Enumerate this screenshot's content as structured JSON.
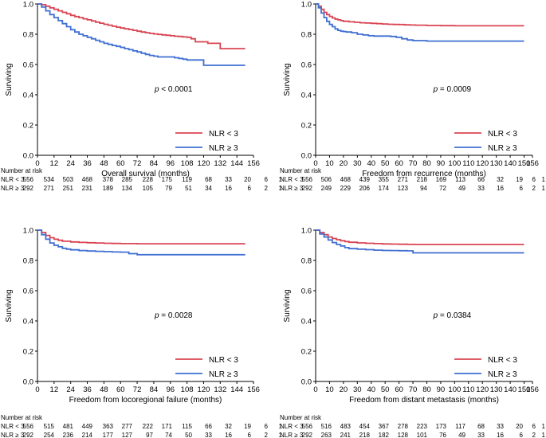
{
  "chart_data": [
    {
      "type": "line",
      "title": "",
      "xlabel": "Overall survival (months)",
      "ylabel": "Surviving",
      "xlim": [
        0,
        156
      ],
      "ylim": [
        0,
        1.0
      ],
      "xticks": [
        0,
        12,
        24,
        36,
        48,
        60,
        72,
        84,
        96,
        108,
        120,
        132,
        144,
        156
      ],
      "yticks": [
        "0.0",
        "0.2",
        "0.4",
        "0.6",
        "0.8",
        "1.0"
      ],
      "pvalue": {
        "label": "p",
        "text": "< 0.0001"
      },
      "legend_position": "bottom-right",
      "series": [
        {
          "name": "NLR < 3",
          "color": "#d94452",
          "x": [
            0,
            3,
            6,
            9,
            12,
            15,
            18,
            21,
            24,
            27,
            30,
            33,
            36,
            39,
            42,
            45,
            48,
            51,
            54,
            57,
            60,
            63,
            66,
            69,
            72,
            75,
            78,
            81,
            84,
            87,
            90,
            93,
            96,
            99,
            102,
            105,
            108,
            111,
            114,
            117,
            120,
            123,
            126,
            129,
            132,
            138,
            144,
            150
          ],
          "y": [
            1.0,
            0.995,
            0.985,
            0.975,
            0.965,
            0.955,
            0.945,
            0.935,
            0.925,
            0.917,
            0.91,
            0.902,
            0.895,
            0.888,
            0.88,
            0.873,
            0.866,
            0.86,
            0.853,
            0.847,
            0.841,
            0.836,
            0.831,
            0.826,
            0.82,
            0.815,
            0.81,
            0.806,
            0.802,
            0.799,
            0.796,
            0.793,
            0.79,
            0.787,
            0.785,
            0.782,
            0.78,
            0.77,
            0.75,
            0.75,
            0.75,
            0.74,
            0.74,
            0.74,
            0.705,
            0.705,
            0.705,
            0.705
          ]
        },
        {
          "name": "NLR ≥ 3",
          "color": "#3f6fd1",
          "x": [
            0,
            3,
            6,
            9,
            12,
            15,
            18,
            21,
            24,
            27,
            30,
            33,
            36,
            39,
            42,
            45,
            48,
            51,
            54,
            57,
            60,
            63,
            66,
            69,
            72,
            75,
            78,
            81,
            84,
            87,
            90,
            93,
            96,
            99,
            102,
            105,
            108,
            111,
            114,
            117,
            120,
            123,
            126,
            129,
            132,
            138,
            144,
            150
          ],
          "y": [
            1.0,
            0.98,
            0.955,
            0.93,
            0.91,
            0.89,
            0.87,
            0.85,
            0.83,
            0.815,
            0.8,
            0.79,
            0.78,
            0.77,
            0.76,
            0.75,
            0.74,
            0.733,
            0.726,
            0.72,
            0.713,
            0.705,
            0.698,
            0.69,
            0.683,
            0.675,
            0.667,
            0.66,
            0.655,
            0.65,
            0.65,
            0.65,
            0.65,
            0.645,
            0.64,
            0.635,
            0.63,
            0.63,
            0.63,
            0.63,
            0.595,
            0.595,
            0.595,
            0.595,
            0.595,
            0.595,
            0.595,
            0.595
          ]
        }
      ],
      "risk_table": {
        "header": "Number at risk",
        "rows": [
          {
            "label": "NLR < 3",
            "values": [
              "556",
              "534",
              "503",
              "468",
              "378",
              "285",
              "228",
              "175",
              "119",
              "68",
              "33",
              "20",
              "6",
              "1"
            ]
          },
          {
            "label": "NLR ≥ 3",
            "values": [
              "292",
              "271",
              "251",
              "231",
              "189",
              "134",
              "105",
              "79",
              "51",
              "34",
              "16",
              "6",
              "2",
              "1"
            ]
          }
        ]
      }
    },
    {
      "type": "line",
      "title": "",
      "xlabel": "Freedom from recurrence (months)",
      "ylabel": "Surviving",
      "xlim": [
        0,
        156
      ],
      "ylim": [
        0,
        1.0
      ],
      "xticks": [
        0,
        10,
        20,
        30,
        40,
        50,
        60,
        70,
        80,
        90,
        100,
        110,
        120,
        130,
        140,
        150,
        156
      ],
      "yticks": [
        "0.0",
        "0.2",
        "0.4",
        "0.6",
        "0.8",
        "1.0"
      ],
      "pvalue": {
        "label": "p",
        "text": "= 0.0009"
      },
      "legend_position": "bottom-right",
      "series": [
        {
          "name": "NLR < 3",
          "color": "#d94452",
          "x": [
            0,
            2,
            4,
            6,
            8,
            10,
            12,
            14,
            16,
            18,
            20,
            24,
            28,
            32,
            36,
            40,
            44,
            48,
            52,
            56,
            60,
            64,
            68,
            72,
            80,
            90,
            100,
            110,
            120,
            130,
            140,
            150
          ],
          "y": [
            1.0,
            0.985,
            0.965,
            0.945,
            0.93,
            0.918,
            0.908,
            0.9,
            0.895,
            0.89,
            0.886,
            0.882,
            0.879,
            0.876,
            0.874,
            0.872,
            0.87,
            0.868,
            0.866,
            0.865,
            0.864,
            0.862,
            0.861,
            0.86,
            0.858,
            0.857,
            0.856,
            0.856,
            0.856,
            0.856,
            0.856,
            0.856
          ]
        },
        {
          "name": "NLR ≥ 3",
          "color": "#3f6fd1",
          "x": [
            0,
            2,
            4,
            6,
            8,
            10,
            12,
            14,
            16,
            18,
            20,
            22,
            26,
            30,
            34,
            38,
            42,
            46,
            50,
            54,
            58,
            62,
            66,
            70,
            80,
            90,
            100,
            110,
            120,
            130,
            140,
            150
          ],
          "y": [
            1.0,
            0.975,
            0.94,
            0.91,
            0.885,
            0.865,
            0.85,
            0.835,
            0.826,
            0.82,
            0.818,
            0.815,
            0.81,
            0.8,
            0.795,
            0.79,
            0.788,
            0.788,
            0.788,
            0.785,
            0.78,
            0.77,
            0.762,
            0.758,
            0.755,
            0.755,
            0.755,
            0.755,
            0.755,
            0.755,
            0.755,
            0.755
          ]
        }
      ],
      "risk_table": {
        "header": "Number at risk",
        "rows": [
          {
            "label": "NLR < 3",
            "values": [
              "556",
              "506",
              "468",
              "439",
              "355",
              "271",
              "218",
              "169",
              "113",
              "66",
              "32",
              "19",
              "6",
              "1"
            ]
          },
          {
            "label": "NLR ≥ 3",
            "values": [
              "292",
              "249",
              "229",
              "206",
              "174",
              "123",
              "94",
              "72",
              "49",
              "33",
              "16",
              "6",
              "2",
              "1"
            ]
          }
        ]
      }
    },
    {
      "type": "line",
      "title": "",
      "xlabel": "Freedom from locoregional failure (months)",
      "ylabel": "Surviving",
      "xlim": [
        0,
        156
      ],
      "ylim": [
        0,
        1.0
      ],
      "xticks": [
        0,
        12,
        24,
        36,
        48,
        60,
        72,
        84,
        96,
        108,
        120,
        132,
        144,
        156
      ],
      "yticks": [
        "0.0",
        "0.2",
        "0.4",
        "0.6",
        "0.8",
        "1.0"
      ],
      "pvalue": {
        "label": "p",
        "text": "= 0.0028"
      },
      "legend_position": "bottom-right",
      "series": [
        {
          "name": "NLR < 3",
          "color": "#d94452",
          "x": [
            0,
            3,
            6,
            9,
            12,
            15,
            18,
            24,
            30,
            36,
            42,
            48,
            54,
            60,
            72,
            84,
            96,
            108,
            120,
            132,
            144,
            150
          ],
          "y": [
            1.0,
            0.985,
            0.965,
            0.95,
            0.94,
            0.933,
            0.927,
            0.922,
            0.919,
            0.917,
            0.915,
            0.913,
            0.912,
            0.911,
            0.91,
            0.91,
            0.91,
            0.91,
            0.91,
            0.91,
            0.91,
            0.91
          ]
        },
        {
          "name": "NLR ≥ 3",
          "color": "#3f6fd1",
          "x": [
            0,
            3,
            6,
            9,
            12,
            15,
            18,
            21,
            24,
            30,
            36,
            42,
            48,
            54,
            60,
            66,
            72,
            84,
            96,
            108,
            120,
            132,
            144,
            150
          ],
          "y": [
            1.0,
            0.97,
            0.94,
            0.915,
            0.9,
            0.89,
            0.88,
            0.875,
            0.87,
            0.865,
            0.862,
            0.86,
            0.858,
            0.856,
            0.855,
            0.845,
            0.838,
            0.838,
            0.838,
            0.838,
            0.838,
            0.838,
            0.838,
            0.838
          ]
        }
      ],
      "risk_table": {
        "header": "Number at risk",
        "rows": [
          {
            "label": "NLR < 3",
            "values": [
              "556",
              "515",
              "481",
              "449",
              "363",
              "277",
              "222",
              "171",
              "115",
              "66",
              "32",
              "19",
              "6",
              "1"
            ]
          },
          {
            "label": "NLR ≥ 3",
            "values": [
              "292",
              "254",
              "236",
              "214",
              "177",
              "127",
              "97",
              "74",
              "50",
              "33",
              "16",
              "6",
              "2",
              "1"
            ]
          }
        ]
      }
    },
    {
      "type": "line",
      "title": "",
      "xlabel": "Freedom from distant metastasis (months)",
      "ylabel": "Surviving",
      "xlim": [
        0,
        156
      ],
      "ylim": [
        0,
        1.0
      ],
      "xticks": [
        0,
        10,
        20,
        30,
        40,
        50,
        60,
        70,
        80,
        90,
        100,
        110,
        120,
        130,
        140,
        150,
        156
      ],
      "yticks": [
        "0.0",
        "0.2",
        "0.4",
        "0.6",
        "0.8",
        "1.0"
      ],
      "pvalue": {
        "label": "p",
        "text": "= 0.0384"
      },
      "legend_position": "bottom-right",
      "series": [
        {
          "name": "NLR < 3",
          "color": "#d94452",
          "x": [
            0,
            3,
            6,
            9,
            12,
            15,
            18,
            21,
            24,
            30,
            36,
            42,
            48,
            54,
            60,
            66,
            72,
            84,
            96,
            108,
            120,
            132,
            144,
            150
          ],
          "y": [
            1.0,
            0.985,
            0.97,
            0.955,
            0.945,
            0.937,
            0.93,
            0.925,
            0.92,
            0.916,
            0.913,
            0.911,
            0.909,
            0.908,
            0.907,
            0.906,
            0.905,
            0.905,
            0.905,
            0.905,
            0.905,
            0.905,
            0.905,
            0.905
          ]
        },
        {
          "name": "NLR ≥ 3",
          "color": "#3f6fd1",
          "x": [
            0,
            3,
            6,
            9,
            12,
            15,
            18,
            21,
            24,
            30,
            36,
            42,
            48,
            54,
            60,
            66,
            70,
            80,
            90,
            100,
            110,
            120,
            130,
            140,
            150
          ],
          "y": [
            1.0,
            0.975,
            0.955,
            0.935,
            0.918,
            0.905,
            0.895,
            0.885,
            0.878,
            0.874,
            0.871,
            0.868,
            0.866,
            0.865,
            0.864,
            0.863,
            0.85,
            0.85,
            0.85,
            0.85,
            0.85,
            0.85,
            0.85,
            0.85,
            0.85
          ]
        }
      ],
      "risk_table": {
        "header": "Number at risk",
        "rows": [
          {
            "label": "NLR < 3",
            "values": [
              "556",
              "516",
              "483",
              "454",
              "367",
              "278",
              "223",
              "173",
              "117",
              "68",
              "33",
              "20",
              "6",
              "1"
            ]
          },
          {
            "label": "NLR ≥ 3",
            "values": [
              "292",
              "263",
              "241",
              "218",
              "182",
              "128",
              "101",
              "76",
              "49",
              "33",
              "16",
              "6",
              "2",
              "1"
            ]
          }
        ]
      }
    }
  ]
}
